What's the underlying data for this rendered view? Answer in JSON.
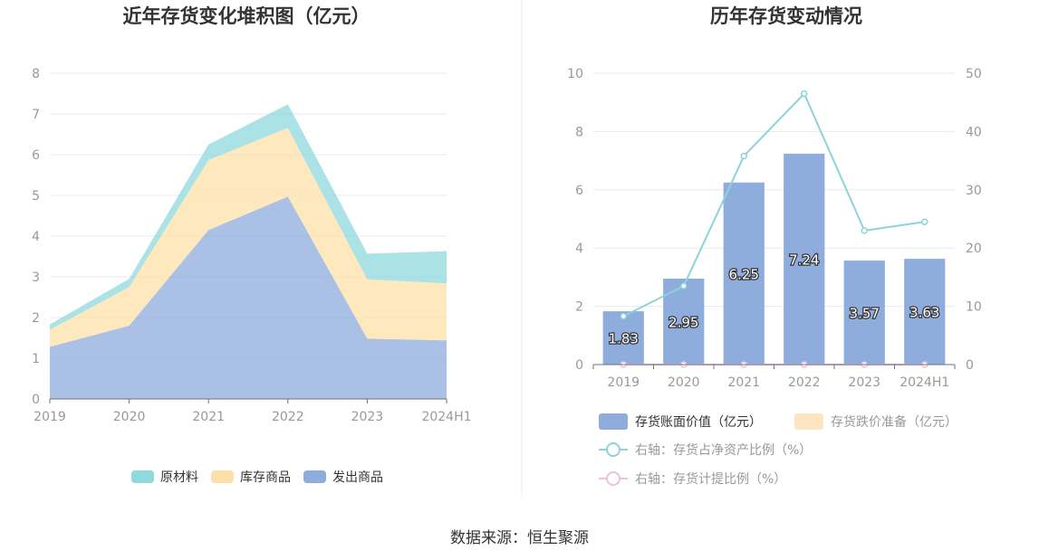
{
  "chart_data": [
    {
      "type": "area",
      "stacked": true,
      "title": "近年存货变化堆积图（亿元）",
      "categories": [
        "2019",
        "2020",
        "2021",
        "2022",
        "2023",
        "2024H1"
      ],
      "ylim": [
        0,
        8
      ],
      "yticks": [
        "0",
        "1",
        "2",
        "3",
        "4",
        "5",
        "6",
        "7",
        "8"
      ],
      "grid": true,
      "legend_position": "bottom",
      "series": [
        {
          "name": "发出商品",
          "color": "#8eacdc",
          "values": [
            1.28,
            1.8,
            4.15,
            4.97,
            1.48,
            1.44
          ]
        },
        {
          "name": "库存商品",
          "color": "#fde0a8",
          "values": [
            0.42,
            0.95,
            1.72,
            1.69,
            1.46,
            1.4
          ]
        },
        {
          "name": "原材料",
          "color": "#8fd8dc",
          "values": [
            0.13,
            0.2,
            0.38,
            0.58,
            0.63,
            0.79
          ]
        }
      ],
      "legend": [
        "原材料",
        "库存商品",
        "发出商品"
      ]
    },
    {
      "type": "bar",
      "title": "历年存货变动情况",
      "categories": [
        "2019",
        "2020",
        "2021",
        "2022",
        "2023",
        "2024H1"
      ],
      "ylim": [
        0,
        10
      ],
      "yticks": [
        "0",
        "2",
        "4",
        "6",
        "8",
        "10"
      ],
      "y2lim": [
        0,
        50
      ],
      "y2ticks": [
        "0",
        "10",
        "20",
        "30",
        "40",
        "50"
      ],
      "grid": true,
      "legend_position": "bottom",
      "series": [
        {
          "name": "存货账面价值（亿元）",
          "kind": "bar",
          "axis": "left",
          "color": "#8eacdc",
          "values": [
            1.83,
            2.95,
            6.25,
            7.24,
            3.57,
            3.63
          ],
          "labels": [
            "1.83",
            "2.95",
            "6.25",
            "7.24",
            "3.57",
            "3.63"
          ]
        },
        {
          "name": "存货跌价准备（亿元）",
          "kind": "bar",
          "axis": "left",
          "color": "#fde5c2",
          "values": [
            0,
            0,
            0,
            0,
            0,
            0
          ]
        },
        {
          "name": "右轴：存货占净资产比例（%）",
          "kind": "line",
          "axis": "right",
          "color": "#8dd3d8",
          "values": [
            8.3,
            13.5,
            35.8,
            46.5,
            23.0,
            24.5
          ]
        },
        {
          "name": "右轴：存货计提比例（%）",
          "kind": "line",
          "axis": "right",
          "color": "#ecc1de",
          "values": [
            0,
            0,
            0,
            0,
            0,
            0
          ]
        }
      ]
    }
  ],
  "footer": {
    "source": "数据来源：恒生聚源"
  }
}
